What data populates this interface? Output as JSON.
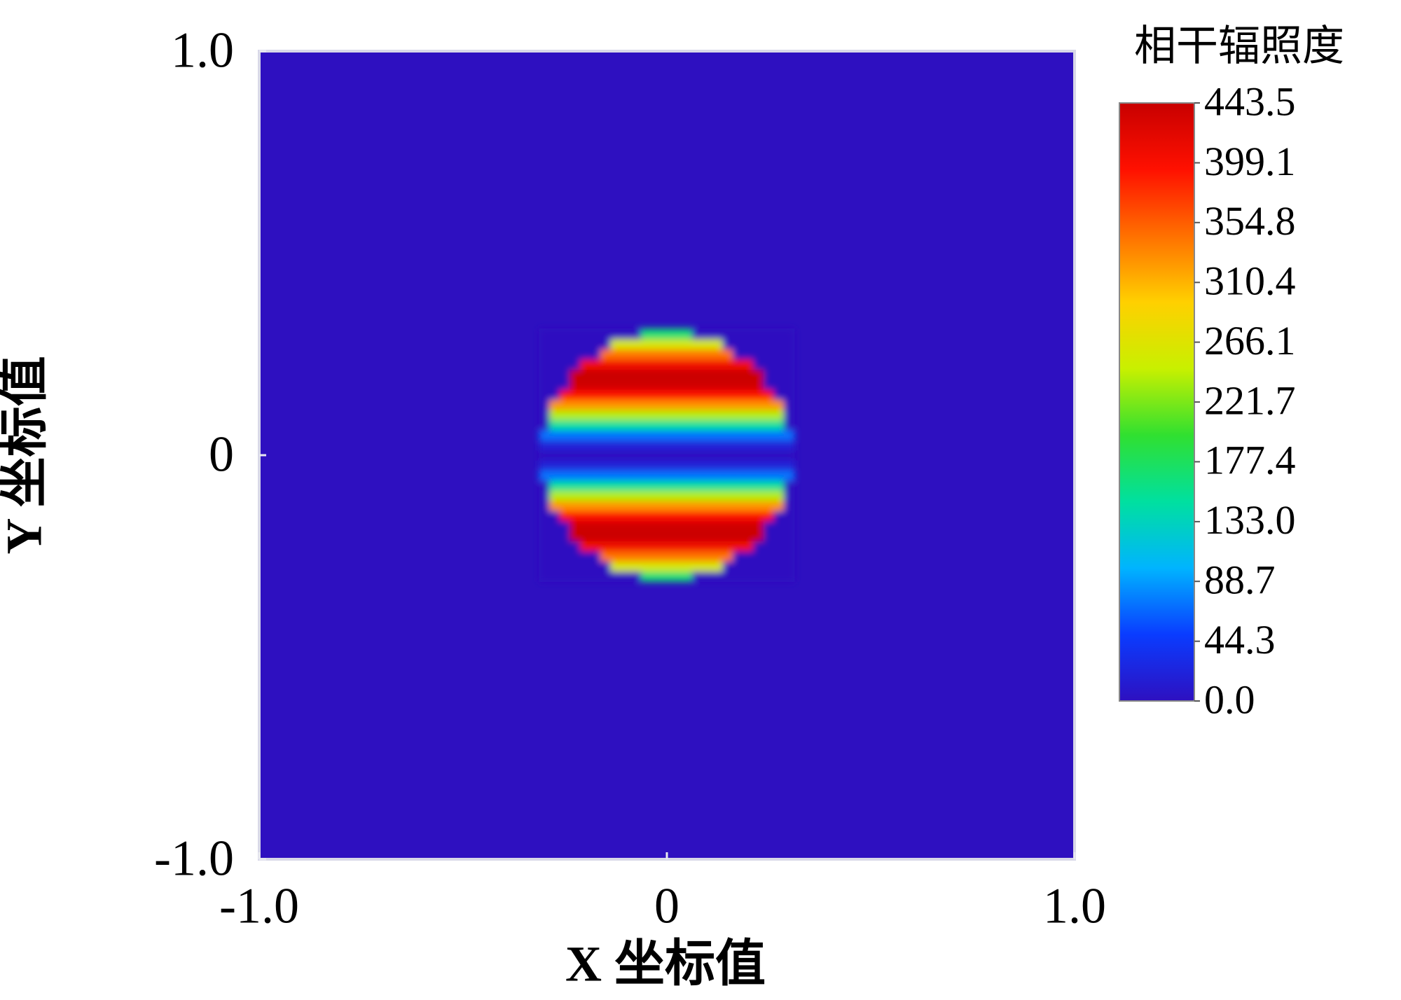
{
  "chart_data": {
    "type": "heatmap",
    "xlabel": "X 坐标值",
    "ylabel": "Y 坐标值",
    "xlim": [
      -1,
      1
    ],
    "ylim": [
      -1,
      1
    ],
    "xticks": [
      {
        "value": -1,
        "label": "-1.0"
      },
      0,
      {
        "value": 1,
        "label": "1.0"
      }
    ],
    "yticks": [
      {
        "value": -1,
        "label": "-1.0"
      },
      0,
      {
        "value": 1,
        "label": "1.0"
      }
    ],
    "x": [
      -0.3,
      -0.275,
      -0.25,
      -0.225,
      -0.2,
      -0.175,
      -0.15,
      -0.125,
      -0.1,
      -0.075,
      -0.05,
      -0.025,
      0,
      0.025,
      0.05,
      0.075,
      0.1,
      0.125,
      0.15,
      0.175,
      0.2,
      0.225,
      0.25,
      0.275,
      0.3
    ],
    "y": [
      -0.3,
      -0.275,
      -0.25,
      -0.225,
      -0.2,
      -0.175,
      -0.15,
      -0.125,
      -0.1,
      -0.075,
      -0.05,
      -0.025,
      0,
      0.025,
      0.05,
      0.075,
      0.1,
      0.125,
      0.15,
      0.175,
      0.2,
      0.225,
      0.25,
      0.275,
      0.3
    ],
    "z": [
      [
        0,
        0,
        0,
        0,
        0,
        0,
        0,
        0,
        0,
        0,
        167,
        167,
        167,
        167,
        167,
        0,
        0,
        0,
        0,
        0,
        0,
        0,
        0,
        0,
        0
      ],
      [
        0,
        0,
        0,
        0,
        0,
        0,
        0,
        259,
        259,
        259,
        259,
        259,
        259,
        259,
        259,
        259,
        259,
        259,
        0,
        0,
        0,
        0,
        0,
        0,
        0
      ],
      [
        0,
        0,
        0,
        0,
        0,
        0,
        343,
        343,
        343,
        343,
        343,
        343,
        343,
        343,
        343,
        343,
        343,
        343,
        343,
        0,
        0,
        0,
        0,
        0,
        0
      ],
      [
        0,
        0,
        0,
        0,
        407,
        407,
        407,
        407,
        407,
        407,
        407,
        407,
        407,
        407,
        407,
        407,
        407,
        407,
        407,
        407,
        407,
        0,
        0,
        0,
        0
      ],
      [
        0,
        0,
        0,
        441,
        441,
        441,
        441,
        441,
        441,
        441,
        441,
        441,
        441,
        441,
        441,
        441,
        441,
        441,
        441,
        441,
        441,
        441,
        0,
        0,
        0
      ],
      [
        0,
        0,
        0,
        437,
        437,
        437,
        437,
        437,
        437,
        437,
        437,
        437,
        437,
        437,
        437,
        437,
        437,
        437,
        437,
        437,
        437,
        437,
        0,
        0,
        0
      ],
      [
        0,
        0,
        397,
        397,
        397,
        397,
        397,
        397,
        397,
        397,
        397,
        397,
        397,
        397,
        397,
        397,
        397,
        397,
        397,
        397,
        397,
        397,
        397,
        0,
        0
      ],
      [
        0,
        327,
        327,
        327,
        327,
        327,
        327,
        327,
        327,
        327,
        327,
        327,
        327,
        327,
        327,
        327,
        327,
        327,
        327,
        327,
        327,
        327,
        327,
        327,
        0
      ],
      [
        0,
        240,
        240,
        240,
        240,
        240,
        240,
        240,
        240,
        240,
        240,
        240,
        240,
        240,
        240,
        240,
        240,
        240,
        240,
        240,
        240,
        240,
        240,
        240,
        0
      ],
      [
        0,
        150,
        150,
        150,
        150,
        150,
        150,
        150,
        150,
        150,
        150,
        150,
        150,
        150,
        150,
        150,
        150,
        150,
        150,
        150,
        150,
        150,
        150,
        150,
        0
      ],
      [
        72,
        72,
        72,
        72,
        72,
        72,
        72,
        72,
        72,
        72,
        72,
        72,
        72,
        72,
        72,
        72,
        72,
        72,
        72,
        72,
        72,
        72,
        72,
        72,
        72
      ],
      [
        19,
        19,
        19,
        19,
        19,
        19,
        19,
        19,
        19,
        19,
        19,
        19,
        19,
        19,
        19,
        19,
        19,
        19,
        19,
        19,
        19,
        19,
        19,
        19,
        19
      ],
      [
        0,
        0,
        0,
        0,
        0,
        0,
        0,
        0,
        0,
        0,
        0,
        0,
        0,
        0,
        0,
        0,
        0,
        0,
        0,
        0,
        0,
        0,
        0,
        0,
        0
      ],
      [
        19,
        19,
        19,
        19,
        19,
        19,
        19,
        19,
        19,
        19,
        19,
        19,
        19,
        19,
        19,
        19,
        19,
        19,
        19,
        19,
        19,
        19,
        19,
        19,
        19
      ],
      [
        72,
        72,
        72,
        72,
        72,
        72,
        72,
        72,
        72,
        72,
        72,
        72,
        72,
        72,
        72,
        72,
        72,
        72,
        72,
        72,
        72,
        72,
        72,
        72,
        72
      ],
      [
        0,
        150,
        150,
        150,
        150,
        150,
        150,
        150,
        150,
        150,
        150,
        150,
        150,
        150,
        150,
        150,
        150,
        150,
        150,
        150,
        150,
        150,
        150,
        150,
        0
      ],
      [
        0,
        240,
        240,
        240,
        240,
        240,
        240,
        240,
        240,
        240,
        240,
        240,
        240,
        240,
        240,
        240,
        240,
        240,
        240,
        240,
        240,
        240,
        240,
        240,
        0
      ],
      [
        0,
        327,
        327,
        327,
        327,
        327,
        327,
        327,
        327,
        327,
        327,
        327,
        327,
        327,
        327,
        327,
        327,
        327,
        327,
        327,
        327,
        327,
        327,
        327,
        0
      ],
      [
        0,
        0,
        397,
        397,
        397,
        397,
        397,
        397,
        397,
        397,
        397,
        397,
        397,
        397,
        397,
        397,
        397,
        397,
        397,
        397,
        397,
        397,
        397,
        0,
        0
      ],
      [
        0,
        0,
        0,
        437,
        437,
        437,
        437,
        437,
        437,
        437,
        437,
        437,
        437,
        437,
        437,
        437,
        437,
        437,
        437,
        437,
        437,
        437,
        0,
        0,
        0
      ],
      [
        0,
        0,
        0,
        441,
        441,
        441,
        441,
        441,
        441,
        441,
        441,
        441,
        441,
        441,
        441,
        441,
        441,
        441,
        441,
        441,
        441,
        441,
        0,
        0,
        0
      ],
      [
        0,
        0,
        0,
        0,
        407,
        407,
        407,
        407,
        407,
        407,
        407,
        407,
        407,
        407,
        407,
        407,
        407,
        407,
        407,
        407,
        407,
        0,
        0,
        0,
        0
      ],
      [
        0,
        0,
        0,
        0,
        0,
        0,
        343,
        343,
        343,
        343,
        343,
        343,
        343,
        343,
        343,
        343,
        343,
        343,
        343,
        0,
        0,
        0,
        0,
        0,
        0
      ],
      [
        0,
        0,
        0,
        0,
        0,
        0,
        0,
        259,
        259,
        259,
        259,
        259,
        259,
        259,
        259,
        259,
        259,
        259,
        0,
        0,
        0,
        0,
        0,
        0,
        0
      ],
      [
        0,
        0,
        0,
        0,
        0,
        0,
        0,
        0,
        0,
        0,
        167,
        167,
        167,
        167,
        167,
        0,
        0,
        0,
        0,
        0,
        0,
        0,
        0,
        0,
        0
      ]
    ],
    "colorscale": [
      "#2e10c0",
      "#0a3cff",
      "#00b4ff",
      "#00e0a0",
      "#30e030",
      "#c8f000",
      "#ffd000",
      "#ff7000",
      "#ff1000",
      "#c80000"
    ],
    "colorbar": {
      "title": "相干辐照度",
      "lim": [
        0,
        443.5
      ],
      "ticks": [
        {
          "value": 0,
          "label": "0.0"
        },
        44.3,
        88.7,
        {
          "value": 133,
          "label": "133.0"
        },
        177.4,
        221.7,
        266.1,
        310.4,
        354.8,
        399.1,
        443.5
      ]
    }
  }
}
